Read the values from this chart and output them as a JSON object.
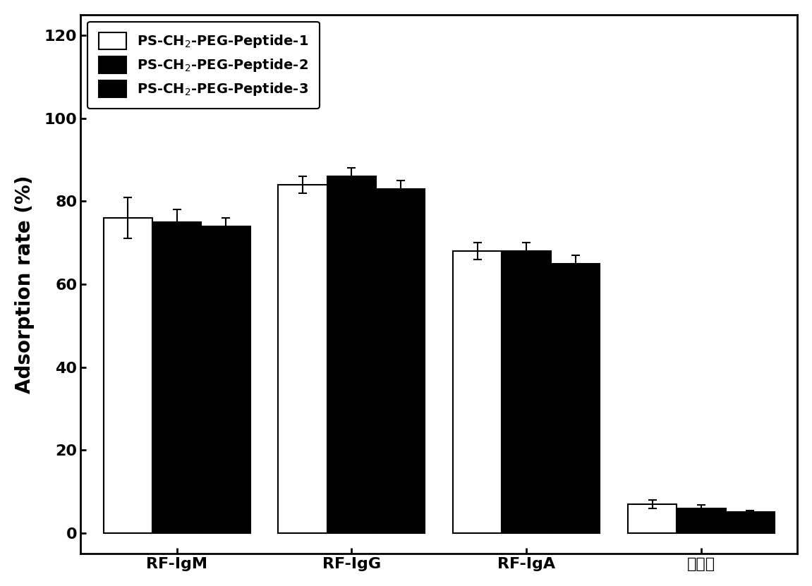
{
  "categories": [
    "RF-IgM",
    "RF-IgG",
    "RF-IgA",
    "总蛋白"
  ],
  "series": [
    {
      "label": "PS-CH$_2$-PEG-Peptide-1",
      "color": "#ffffff",
      "edgecolor": "#000000",
      "values": [
        76,
        84,
        68,
        7
      ],
      "errors": [
        5,
        2,
        2,
        1
      ]
    },
    {
      "label": "PS-CH$_2$-PEG-Peptide-2",
      "color": "#000000",
      "edgecolor": "#000000",
      "values": [
        75,
        86,
        68,
        6
      ],
      "errors": [
        3,
        2,
        2,
        0.8
      ]
    },
    {
      "label": "PS-CH$_2$-PEG-Peptide-3",
      "color": "#000000",
      "edgecolor": "#000000",
      "values": [
        74,
        83,
        65,
        5
      ],
      "errors": [
        2,
        2,
        2,
        0.5
      ]
    }
  ],
  "ylabel": "Adsorption rate (%)",
  "ylim": [
    -5,
    125
  ],
  "yticks": [
    0,
    20,
    40,
    60,
    80,
    100,
    120
  ],
  "bar_width": 0.28,
  "background_color": "#ffffff",
  "legend_fontsize": 14,
  "axis_label_fontsize": 20,
  "tick_fontsize": 16
}
